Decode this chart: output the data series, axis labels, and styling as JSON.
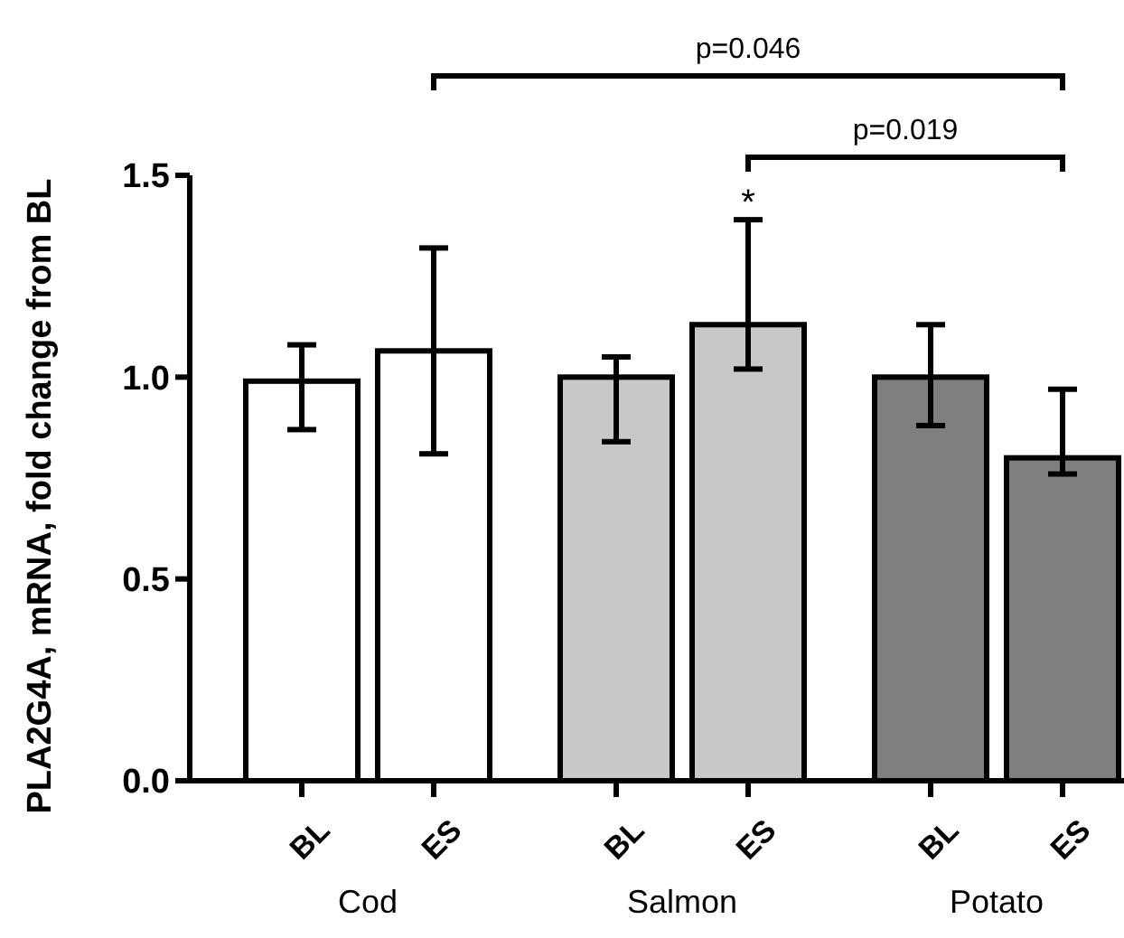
{
  "chart_data": {
    "type": "bar",
    "ylabel": "PLA2G4A, mRNA, fold change from BL",
    "categories": [
      "BL",
      "ES",
      "BL",
      "ES",
      "BL",
      "ES"
    ],
    "values": [
      0.99,
      1.065,
      1.0,
      1.13,
      1.0,
      0.8
    ],
    "errors": [
      [
        0.87,
        1.08
      ],
      [
        0.81,
        1.32
      ],
      [
        0.84,
        1.05
      ],
      [
        1.02,
        1.39
      ],
      [
        0.88,
        1.13
      ],
      [
        0.76,
        0.97
      ]
    ],
    "colors": [
      "#ffffff",
      "#ffffff",
      "#c8c8c8",
      "#c8c8c8",
      "#7f7f7f",
      "#7f7f7f"
    ],
    "ylim": [
      0,
      1.5
    ],
    "yticks": [
      {
        "value": 0,
        "label": "0.0"
      },
      {
        "value": 0.5,
        "label": "0.5"
      },
      {
        "value": 1,
        "label": "1.0"
      },
      {
        "value": 1.5,
        "label": "1.5"
      }
    ],
    "annotations": [
      "p=0.046",
      "p=0.019",
      "*",
      "Cod",
      "Salmon",
      "Potato"
    ]
  }
}
